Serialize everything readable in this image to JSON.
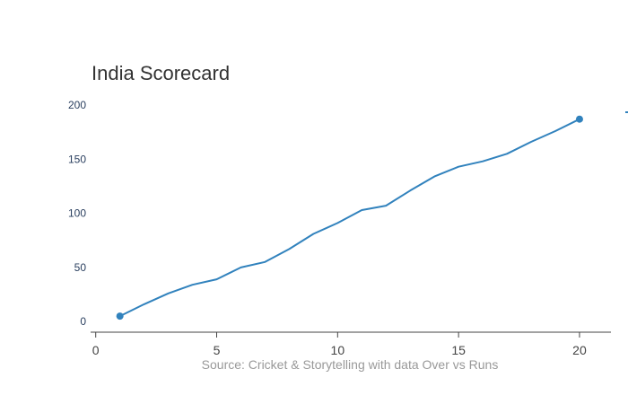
{
  "chart_data": {
    "type": "line",
    "title": "India Scorecard",
    "source_note": "Source: Cricket & Storytelling with data Over vs Runs",
    "x_ticks": [
      0,
      5,
      10,
      15,
      20
    ],
    "y_ticks": [
      0,
      50,
      100,
      150,
      200
    ],
    "xlim": [
      -0.1,
      21.3
    ],
    "ylim": [
      -9,
      205
    ],
    "grid": false,
    "series": [
      {
        "color": "#3182bd",
        "x": [
          1,
          2,
          3,
          4,
          5,
          6,
          7,
          8,
          9,
          10,
          11,
          12,
          13,
          14,
          15,
          16,
          17,
          18,
          19,
          20
        ],
        "y": [
          5,
          16,
          26,
          34,
          39,
          50,
          55,
          67,
          81,
          91,
          103,
          107,
          121,
          134,
          143,
          148,
          155,
          166,
          176,
          187
        ],
        "endpoint_markers": true
      }
    ]
  }
}
